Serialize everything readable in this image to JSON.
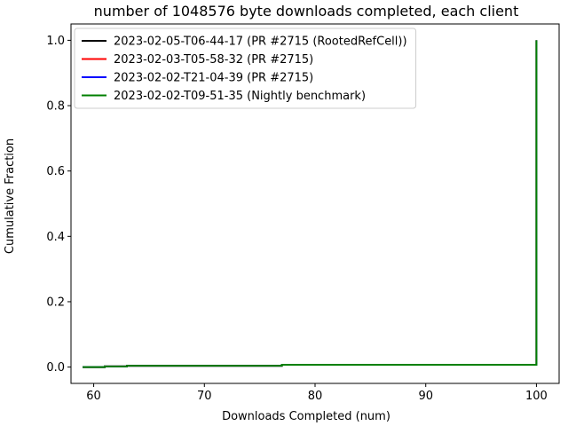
{
  "chart_data": {
    "type": "line",
    "title": "number of 1048576 byte downloads completed, each client",
    "xlabel": "Downloads Completed (num)",
    "ylabel": "Cumulative Fraction",
    "xlim": [
      57.95,
      102.05
    ],
    "ylim": [
      -0.05,
      1.05
    ],
    "xticks": [
      60,
      70,
      80,
      90,
      100
    ],
    "yticks": [
      0.0,
      0.2,
      0.4,
      0.6,
      0.8,
      1.0
    ],
    "xtick_labels": [
      "60",
      "70",
      "80",
      "90",
      "100"
    ],
    "ytick_labels": [
      "0.0",
      "0.2",
      "0.4",
      "0.6",
      "0.8",
      "1.0"
    ],
    "grid": false,
    "legend_position": "top-left",
    "series": [
      {
        "name": "2023-02-05-T06-44-17 (PR #2715 (RootedRefCell))",
        "color": "#000000",
        "x": [
          59,
          61,
          63,
          77,
          100,
          100
        ],
        "y": [
          0.0,
          0.002,
          0.004,
          0.007,
          0.008,
          1.0
        ]
      },
      {
        "name": "2023-02-03-T05-58-32 (PR #2715)",
        "color": "#ff0000",
        "x": [
          59,
          61,
          63,
          77,
          100,
          100
        ],
        "y": [
          0.0,
          0.002,
          0.004,
          0.007,
          0.008,
          1.0
        ]
      },
      {
        "name": "2023-02-02-T21-04-39 (PR #2715)",
        "color": "#0000ff",
        "x": [
          59,
          61,
          63,
          77,
          100,
          100
        ],
        "y": [
          0.0,
          0.002,
          0.004,
          0.007,
          0.008,
          1.0
        ]
      },
      {
        "name": "2023-02-02-T09-51-35 (Nightly benchmark)",
        "color": "#008000",
        "x": [
          59,
          61,
          63,
          77,
          100,
          100
        ],
        "y": [
          0.0,
          0.002,
          0.004,
          0.007,
          0.008,
          1.0
        ]
      }
    ]
  }
}
